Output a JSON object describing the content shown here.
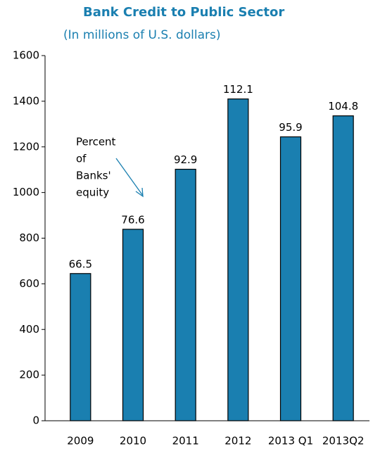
{
  "chart_data": {
    "type": "bar",
    "title": "Bank Credit to Public Sector",
    "subtitle": "(In millions of U.S. dollars)",
    "categories": [
      "2009",
      "2010",
      "2011",
      "2012",
      "2013 Q1",
      "2013Q2"
    ],
    "values": [
      645,
      839,
      1102,
      1410,
      1244,
      1336
    ],
    "equity_percent": [
      66.5,
      76.6,
      92.9,
      112.1,
      95.9,
      104.8
    ],
    "annotation": [
      "Percent",
      "of",
      "Banks'",
      "equity"
    ],
    "color": "#1a7fb0",
    "ylim": [
      0,
      1600
    ],
    "yticks": [
      0,
      200,
      400,
      600,
      800,
      1000,
      1200,
      1400,
      1600
    ],
    "grid": false
  }
}
